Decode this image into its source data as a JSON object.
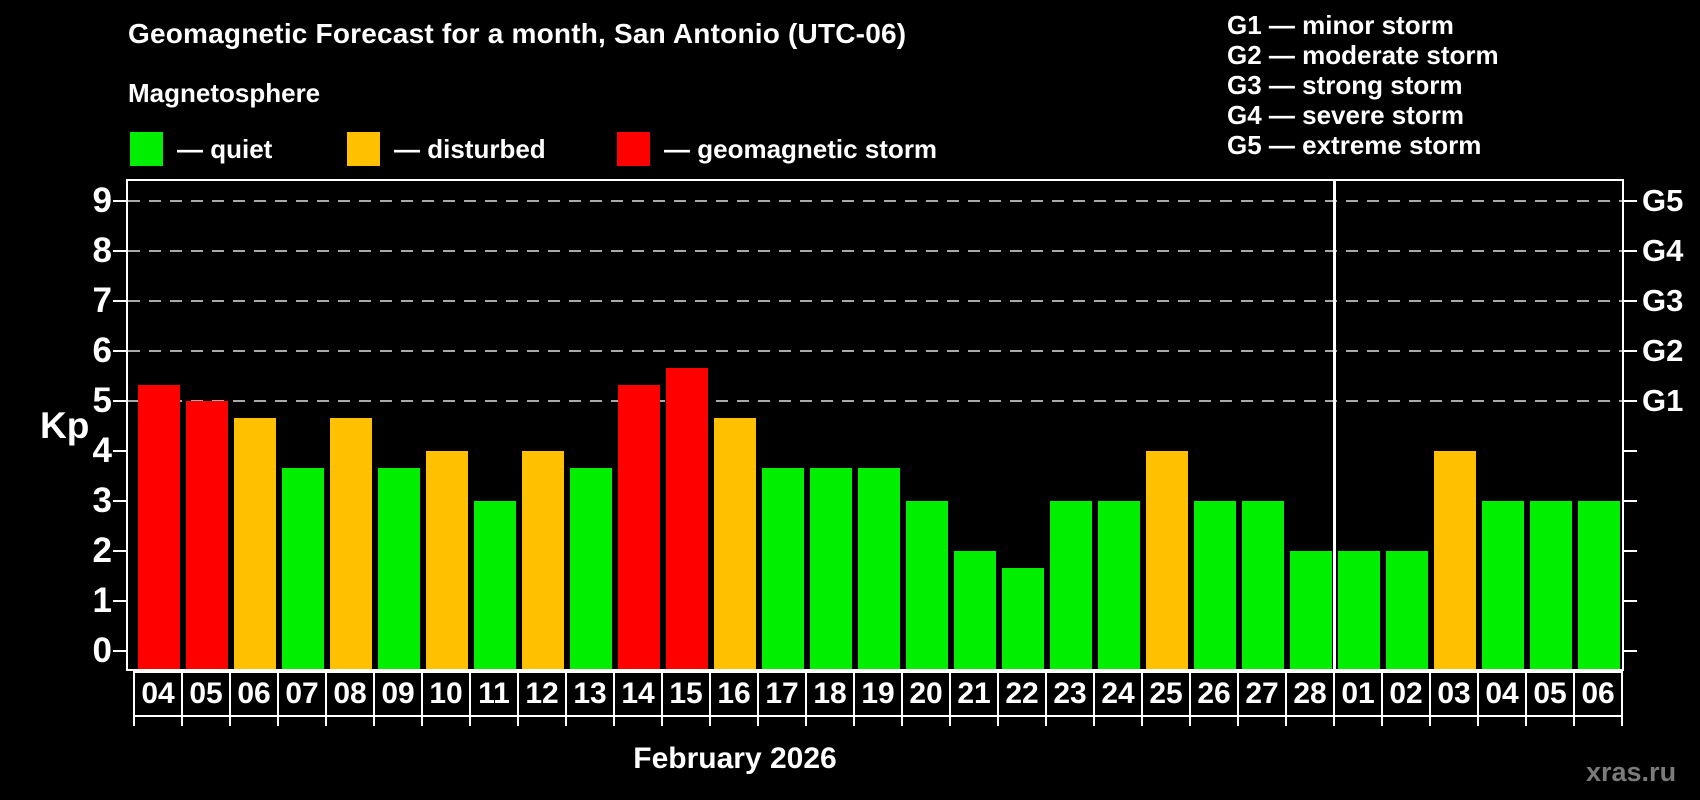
{
  "title": "Geomagnetic Forecast for a month, San Antonio (UTC-06)",
  "subtitle": "Magnetosphere",
  "legend": {
    "items": [
      {
        "key": "quiet",
        "label": "— quiet",
        "color": "#00ee00"
      },
      {
        "key": "disturbed",
        "label": "— disturbed",
        "color": "#ffc000"
      },
      {
        "key": "storm",
        "label": "— geomagnetic storm",
        "color": "#ff0000"
      }
    ]
  },
  "g_legend": {
    "lines": [
      "G1 — minor storm",
      "G2 — moderate storm",
      "G3 — strong storm",
      "G4 — severe storm",
      "G5 — extreme storm"
    ]
  },
  "colors": {
    "quiet": "#00ee00",
    "disturbed": "#ffc000",
    "storm": "#ff0000",
    "grid": "#a9a9a9",
    "separator": "#ffffff",
    "watermark": "#7b7b7b"
  },
  "axis": {
    "ylabel": "Kp",
    "yticks": [
      0,
      1,
      2,
      3,
      4,
      5,
      6,
      7,
      8,
      9
    ],
    "right_g_labels": [
      {
        "value": 5,
        "label": "G1"
      },
      {
        "value": 6,
        "label": "G2"
      },
      {
        "value": 7,
        "label": "G3"
      },
      {
        "value": 8,
        "label": "G4"
      },
      {
        "value": 9,
        "label": "G5"
      }
    ]
  },
  "xlabel": "February 2026",
  "watermark": "xras.ru",
  "chart_data": {
    "type": "bar",
    "title": "Geomagnetic Forecast for a month, San Antonio (UTC-06)",
    "ylabel": "Kp",
    "ylim": [
      0,
      9
    ],
    "grid_levels": [
      5,
      6,
      7,
      8,
      9
    ],
    "legend_position": "top",
    "categories": [
      "04",
      "05",
      "06",
      "07",
      "08",
      "09",
      "10",
      "11",
      "12",
      "13",
      "14",
      "15",
      "16",
      "17",
      "18",
      "19",
      "20",
      "21",
      "22",
      "23",
      "24",
      "25",
      "26",
      "27",
      "28",
      "01",
      "02",
      "03",
      "04",
      "05",
      "06"
    ],
    "values": [
      5.33,
      5.0,
      4.67,
      3.67,
      4.67,
      3.67,
      4.0,
      3.0,
      4.0,
      3.67,
      5.33,
      5.67,
      4.67,
      3.67,
      3.67,
      3.67,
      3.0,
      2.0,
      1.67,
      3.0,
      3.0,
      4.0,
      3.0,
      3.0,
      2.0,
      2.0,
      2.0,
      4.0,
      3.0,
      3.0,
      3.0
    ],
    "status": [
      "storm",
      "storm",
      "disturbed",
      "quiet",
      "disturbed",
      "quiet",
      "disturbed",
      "quiet",
      "disturbed",
      "quiet",
      "storm",
      "storm",
      "disturbed",
      "quiet",
      "quiet",
      "quiet",
      "quiet",
      "quiet",
      "quiet",
      "quiet",
      "quiet",
      "disturbed",
      "quiet",
      "quiet",
      "quiet",
      "quiet",
      "quiet",
      "disturbed",
      "quiet",
      "quiet",
      "quiet"
    ],
    "month_boundary_after_index": 24,
    "xlabel": "February 2026"
  }
}
